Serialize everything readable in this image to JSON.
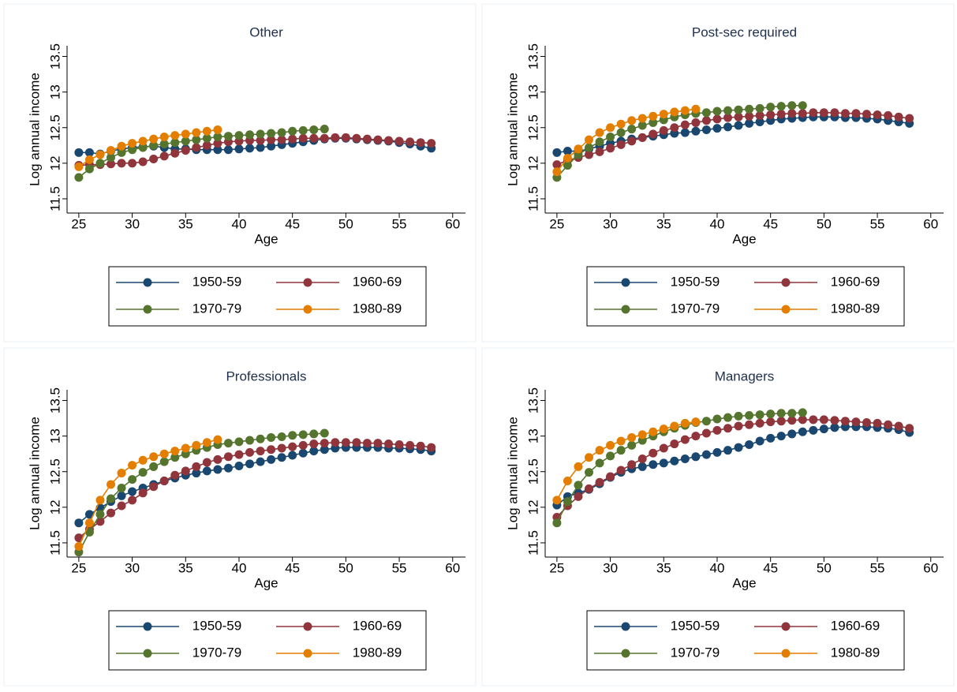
{
  "chart_data": [
    {
      "type": "line",
      "title": "Other",
      "x_label": "Age",
      "y_label": "Log annual income",
      "x": [
        25,
        26,
        27,
        28,
        29,
        30,
        31,
        32,
        33,
        34,
        35,
        36,
        37,
        38,
        39,
        40,
        41,
        42,
        43,
        44,
        45,
        46,
        47,
        48,
        49,
        50,
        51,
        52,
        53,
        54,
        55,
        56,
        57,
        58
      ],
      "xlim": [
        23.9,
        61.2
      ],
      "ylim": [
        11.3,
        13.65
      ],
      "xticks": [
        25,
        30,
        35,
        40,
        45,
        50,
        55,
        60
      ],
      "yticks": [
        11.5,
        12,
        12.5,
        13,
        13.5
      ],
      "series": [
        {
          "name": "1950-59",
          "color": "#1a476f",
          "values": [
            12.15,
            12.15,
            12.13,
            12.17,
            12.2,
            12.22,
            12.23,
            12.24,
            12.22,
            12.2,
            12.2,
            12.19,
            12.19,
            12.19,
            12.19,
            12.2,
            12.21,
            12.22,
            12.24,
            12.26,
            12.28,
            12.3,
            12.32,
            12.34,
            12.35,
            12.35,
            12.34,
            12.33,
            12.32,
            12.31,
            12.29,
            12.27,
            12.24,
            12.21
          ]
        },
        {
          "name": "1960-69",
          "color": "#90353b",
          "values": [
            11.97,
            11.98,
            11.98,
            11.99,
            12.0,
            12.0,
            12.02,
            12.06,
            12.1,
            12.14,
            12.18,
            12.22,
            12.25,
            12.28,
            12.3,
            12.31,
            12.32,
            12.32,
            12.33,
            12.33,
            12.34,
            12.35,
            12.35,
            12.35,
            12.36,
            12.36,
            12.35,
            12.34,
            12.33,
            12.32,
            12.31,
            12.3,
            12.29,
            12.28
          ]
        },
        {
          "name": "1970-79",
          "color": "#55752f",
          "values": [
            11.8,
            11.92,
            12.0,
            12.08,
            12.15,
            12.19,
            12.22,
            12.25,
            12.27,
            12.29,
            12.31,
            12.33,
            12.35,
            12.37,
            12.38,
            12.39,
            12.4,
            12.41,
            12.42,
            12.43,
            12.45,
            12.46,
            12.47,
            12.48,
            null,
            null,
            null,
            null,
            null,
            null,
            null,
            null,
            null,
            null
          ]
        },
        {
          "name": "1980-89",
          "color": "#e37e00",
          "values": [
            11.95,
            12.05,
            12.12,
            12.18,
            12.24,
            12.28,
            12.31,
            12.34,
            12.37,
            12.39,
            12.41,
            12.43,
            12.45,
            12.47,
            null,
            null,
            null,
            null,
            null,
            null,
            null,
            null,
            null,
            null,
            null,
            null,
            null,
            null,
            null,
            null,
            null,
            null,
            null,
            null
          ]
        }
      ]
    },
    {
      "type": "line",
      "title": "Post-sec required",
      "x_label": "Age",
      "y_label": "Log annual income",
      "x": [
        25,
        26,
        27,
        28,
        29,
        30,
        31,
        32,
        33,
        34,
        35,
        36,
        37,
        38,
        39,
        40,
        41,
        42,
        43,
        44,
        45,
        46,
        47,
        48,
        49,
        50,
        51,
        52,
        53,
        54,
        55,
        56,
        57,
        58
      ],
      "xlim": [
        23.9,
        61.2
      ],
      "ylim": [
        11.3,
        13.65
      ],
      "xticks": [
        25,
        30,
        35,
        40,
        45,
        50,
        55,
        60
      ],
      "yticks": [
        11.5,
        12,
        12.5,
        13,
        13.5
      ],
      "series": [
        {
          "name": "1950-59",
          "color": "#1a476f",
          "values": [
            12.15,
            12.17,
            12.17,
            12.2,
            12.24,
            12.28,
            12.31,
            12.34,
            12.36,
            12.38,
            12.4,
            12.42,
            12.43,
            12.45,
            12.47,
            12.49,
            12.51,
            12.53,
            12.56,
            12.58,
            12.6,
            12.62,
            12.63,
            12.64,
            12.65,
            12.65,
            12.65,
            12.64,
            12.64,
            12.63,
            12.62,
            12.6,
            12.58,
            12.56
          ]
        },
        {
          "name": "1960-69",
          "color": "#90353b",
          "values": [
            11.98,
            12.04,
            12.08,
            12.12,
            12.16,
            12.21,
            12.26,
            12.31,
            12.36,
            12.41,
            12.46,
            12.5,
            12.54,
            12.57,
            12.6,
            12.62,
            12.64,
            12.65,
            12.66,
            12.67,
            12.68,
            12.69,
            12.7,
            12.7,
            12.71,
            12.71,
            12.71,
            12.7,
            12.7,
            12.69,
            12.68,
            12.67,
            12.65,
            12.63
          ]
        },
        {
          "name": "1970-79",
          "color": "#55752f",
          "values": [
            11.8,
            11.97,
            12.12,
            12.22,
            12.3,
            12.37,
            12.43,
            12.48,
            12.53,
            12.57,
            12.61,
            12.65,
            12.68,
            12.7,
            12.71,
            12.73,
            12.74,
            12.75,
            12.76,
            12.77,
            12.79,
            12.8,
            12.81,
            12.81,
            null,
            null,
            null,
            null,
            null,
            null,
            null,
            null,
            null,
            null
          ]
        },
        {
          "name": "1980-89",
          "color": "#e37e00",
          "values": [
            11.88,
            12.07,
            12.2,
            12.33,
            12.43,
            12.5,
            12.55,
            12.6,
            12.63,
            12.66,
            12.69,
            12.72,
            12.74,
            12.76,
            null,
            null,
            null,
            null,
            null,
            null,
            null,
            null,
            null,
            null,
            null,
            null,
            null,
            null,
            null,
            null,
            null,
            null,
            null,
            null
          ]
        }
      ]
    },
    {
      "type": "line",
      "title": "Professionals",
      "x_label": "Age",
      "y_label": "Log annual income",
      "x": [
        25,
        26,
        27,
        28,
        29,
        30,
        31,
        32,
        33,
        34,
        35,
        36,
        37,
        38,
        39,
        40,
        41,
        42,
        43,
        44,
        45,
        46,
        47,
        48,
        49,
        50,
        51,
        52,
        53,
        54,
        55,
        56,
        57,
        58
      ],
      "xlim": [
        23.9,
        61.2
      ],
      "ylim": [
        11.3,
        13.65
      ],
      "xticks": [
        25,
        30,
        35,
        40,
        45,
        50,
        55,
        60
      ],
      "yticks": [
        11.5,
        12,
        12.5,
        13,
        13.5
      ],
      "series": [
        {
          "name": "1950-59",
          "color": "#1a476f",
          "values": [
            11.78,
            11.9,
            11.99,
            12.08,
            12.16,
            12.22,
            12.27,
            12.32,
            12.37,
            12.41,
            12.45,
            12.48,
            12.51,
            12.53,
            12.55,
            12.58,
            12.61,
            12.64,
            12.67,
            12.7,
            12.73,
            12.76,
            12.79,
            12.81,
            12.83,
            12.84,
            12.84,
            12.84,
            12.84,
            12.83,
            12.83,
            12.82,
            12.81,
            12.79
          ]
        },
        {
          "name": "1960-69",
          "color": "#90353b",
          "values": [
            11.57,
            11.69,
            11.8,
            11.92,
            12.02,
            12.1,
            12.2,
            12.29,
            12.37,
            12.45,
            12.51,
            12.57,
            12.63,
            12.67,
            12.71,
            12.74,
            12.77,
            12.79,
            12.81,
            12.83,
            12.85,
            12.87,
            12.89,
            12.9,
            12.91,
            12.91,
            12.91,
            12.9,
            12.9,
            12.89,
            12.88,
            12.87,
            12.86,
            12.84
          ]
        },
        {
          "name": "1970-79",
          "color": "#55752f",
          "values": [
            11.37,
            11.65,
            11.9,
            12.12,
            12.27,
            12.39,
            12.49,
            12.57,
            12.64,
            12.7,
            12.75,
            12.8,
            12.84,
            12.88,
            12.9,
            12.92,
            12.94,
            12.96,
            12.98,
            12.99,
            13.01,
            13.02,
            13.03,
            13.04,
            null,
            null,
            null,
            null,
            null,
            null,
            null,
            null,
            null,
            null
          ]
        },
        {
          "name": "1980-89",
          "color": "#e37e00",
          "values": [
            11.45,
            11.78,
            12.1,
            12.32,
            12.48,
            12.59,
            12.66,
            12.71,
            12.75,
            12.79,
            12.83,
            12.87,
            12.91,
            12.95,
            null,
            null,
            null,
            null,
            null,
            null,
            null,
            null,
            null,
            null,
            null,
            null,
            null,
            null,
            null,
            null,
            null,
            null,
            null,
            null
          ]
        }
      ]
    },
    {
      "type": "line",
      "title": "Managers",
      "x_label": "Age",
      "y_label": "Log annual income",
      "x": [
        25,
        26,
        27,
        28,
        29,
        30,
        31,
        32,
        33,
        34,
        35,
        36,
        37,
        38,
        39,
        40,
        41,
        42,
        43,
        44,
        45,
        46,
        47,
        48,
        49,
        50,
        51,
        52,
        53,
        54,
        55,
        56,
        57,
        58
      ],
      "xlim": [
        23.9,
        61.2
      ],
      "ylim": [
        11.3,
        13.65
      ],
      "xticks": [
        25,
        30,
        35,
        40,
        45,
        50,
        55,
        60
      ],
      "yticks": [
        11.5,
        12,
        12.5,
        13,
        13.5
      ],
      "series": [
        {
          "name": "1950-59",
          "color": "#1a476f",
          "values": [
            12.03,
            12.15,
            12.2,
            12.25,
            12.33,
            12.42,
            12.49,
            12.54,
            12.57,
            12.6,
            12.62,
            12.65,
            12.68,
            12.71,
            12.74,
            12.77,
            12.8,
            12.84,
            12.88,
            12.93,
            12.97,
            13.0,
            13.03,
            13.06,
            13.08,
            13.1,
            13.12,
            13.13,
            13.13,
            13.13,
            13.12,
            13.11,
            13.09,
            13.05
          ]
        },
        {
          "name": "1960-69",
          "color": "#90353b",
          "values": [
            11.86,
            12.02,
            12.15,
            12.26,
            12.35,
            12.43,
            12.52,
            12.6,
            12.68,
            12.76,
            12.83,
            12.89,
            12.95,
            13.0,
            13.04,
            13.08,
            13.11,
            13.14,
            13.16,
            13.18,
            13.2,
            13.21,
            13.22,
            13.23,
            13.23,
            13.23,
            13.22,
            13.21,
            13.2,
            13.19,
            13.18,
            13.16,
            13.14,
            13.11
          ]
        },
        {
          "name": "1970-79",
          "color": "#55752f",
          "values": [
            11.78,
            12.08,
            12.31,
            12.49,
            12.62,
            12.72,
            12.8,
            12.87,
            12.94,
            13.0,
            13.06,
            13.11,
            13.15,
            13.19,
            13.21,
            13.24,
            13.26,
            13.28,
            13.29,
            13.3,
            13.31,
            13.32,
            13.32,
            13.33,
            null,
            null,
            null,
            null,
            null,
            null,
            null,
            null,
            null,
            null
          ]
        },
        {
          "name": "1980-89",
          "color": "#e37e00",
          "values": [
            12.1,
            12.37,
            12.57,
            12.7,
            12.8,
            12.87,
            12.93,
            12.98,
            13.02,
            13.06,
            13.1,
            13.14,
            13.18,
            13.2,
            null,
            null,
            null,
            null,
            null,
            null,
            null,
            null,
            null,
            null,
            null,
            null,
            null,
            null,
            null,
            null,
            null,
            null,
            null,
            null
          ]
        }
      ]
    }
  ]
}
